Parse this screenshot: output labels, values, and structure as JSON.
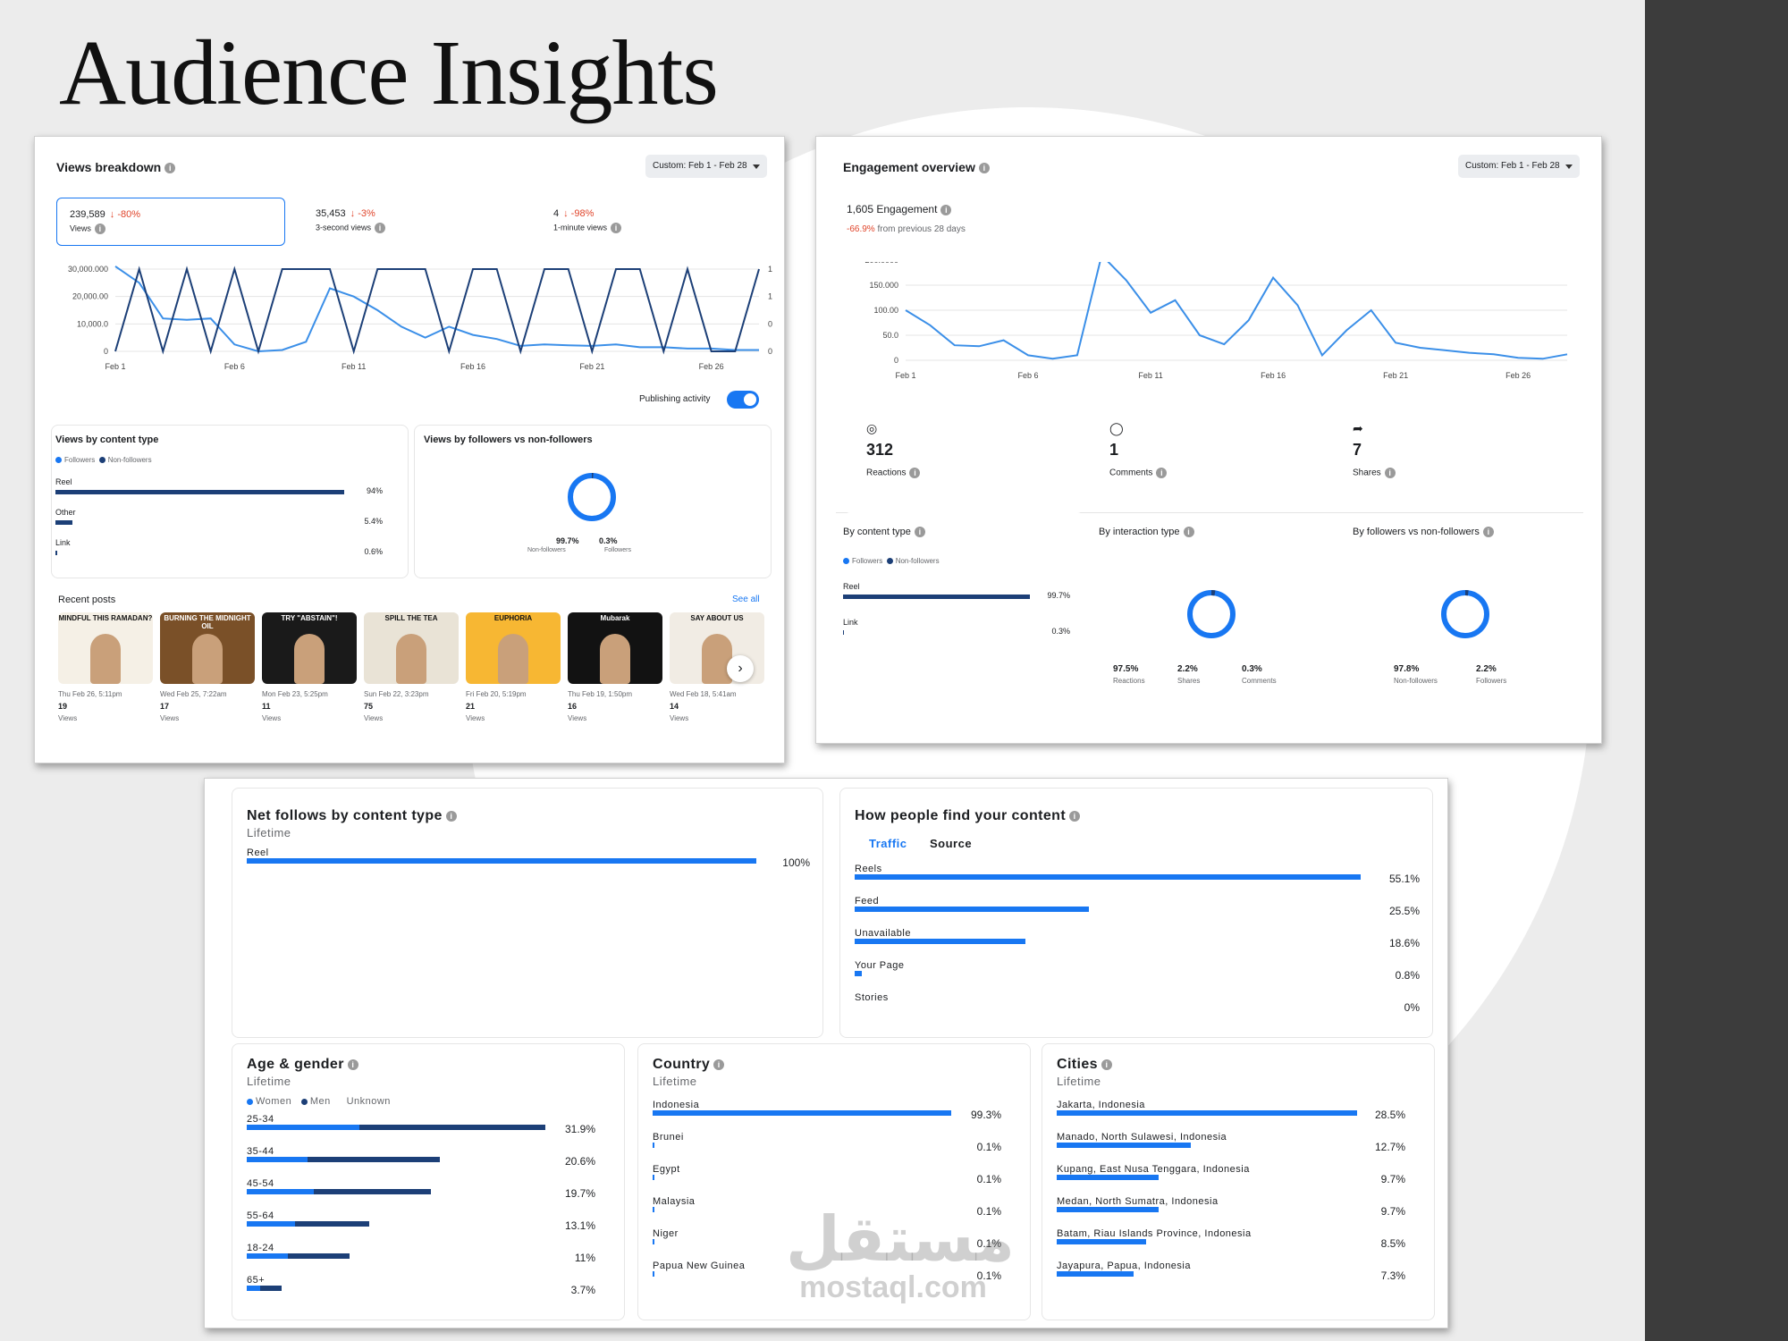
{
  "page_title": "Audience Insights",
  "views": {
    "title": "Views breakdown",
    "date_range": "Custom: Feb 1 - Feb 28",
    "metrics": [
      {
        "value": "239,589",
        "change": "↓ -80%",
        "label": "Views"
      },
      {
        "value": "35,453",
        "change": "↓ -3%",
        "label": "3-second views"
      },
      {
        "value": "4",
        "change": "↓ -98%",
        "label": "1-minute views"
      }
    ],
    "y_left": [
      "30,000.000",
      "20,000.00",
      "10,000.0",
      "0"
    ],
    "y_right": [
      "1",
      "1",
      "0",
      "0"
    ],
    "x_ticks": [
      "Feb 1",
      "Feb 6",
      "Feb 11",
      "Feb 16",
      "Feb 21",
      "Feb 26"
    ],
    "publishing_label": "Publishing activity",
    "content_type_title": "Views by content type",
    "legend_followers": "Followers",
    "legend_nonfollowers": "Non-followers",
    "content_types": [
      {
        "label": "Reel",
        "pct": "94%",
        "value": 94
      },
      {
        "label": "Other",
        "pct": "5.4%",
        "value": 5.4
      },
      {
        "label": "Link",
        "pct": "0.6%",
        "value": 0.6
      }
    ],
    "followers_title": "Views by followers vs non-followers",
    "donut": {
      "a_val": "99.7%",
      "a_lbl": "Non-followers",
      "b_val": "0.3%",
      "b_lbl": "Followers"
    },
    "recent_title": "Recent posts",
    "see_all": "See all",
    "posts": [
      {
        "caption": "MINDFUL THIS RAMADAN?",
        "date": "Thu Feb 26, 5:11pm",
        "views": "19",
        "unit": "Views",
        "bg": "#f5f0e6"
      },
      {
        "caption": "BURNING THE MIDNIGHT OIL",
        "date": "Wed Feb 25, 7:22am",
        "views": "17",
        "unit": "Views",
        "bg": "#7a5028"
      },
      {
        "caption": "TRY \"ABSTAIN\"!",
        "date": "Mon Feb 23, 5:25pm",
        "views": "11",
        "unit": "Views",
        "bg": "#1a1a1a"
      },
      {
        "caption": "SPILL THE TEA",
        "date": "Sun Feb 22, 3:23pm",
        "views": "75",
        "unit": "Views",
        "bg": "#e9e3d6"
      },
      {
        "caption": "EUPHORIA",
        "date": "Fri Feb 20, 5:19pm",
        "views": "21",
        "unit": "Views",
        "bg": "#f7b733"
      },
      {
        "caption": "Mubarak",
        "date": "Thu Feb 19, 1:50pm",
        "views": "16",
        "unit": "Views",
        "bg": "#121212"
      },
      {
        "caption": "SAY ABOUT US",
        "date": "Wed Feb 18, 5:41am",
        "views": "14",
        "unit": "Views",
        "bg": "#f1ece4"
      }
    ]
  },
  "engagement": {
    "title": "Engagement overview",
    "date_range": "Custom: Feb 1 - Feb 28",
    "total": "1,605 Engagement",
    "change": "-66.9%",
    "change_suffix": "from previous 28 days",
    "y_ticks": [
      "200.0000",
      "150.000",
      "100.00",
      "50.0",
      "0"
    ],
    "x_ticks": [
      "Feb 1",
      "Feb 6",
      "Feb 11",
      "Feb 16",
      "Feb 21",
      "Feb 26"
    ],
    "stats": [
      {
        "value": "312",
        "label": "Reactions"
      },
      {
        "value": "1",
        "label": "Comments"
      },
      {
        "value": "7",
        "label": "Shares"
      }
    ],
    "content_title": "By content type",
    "legend_followers": "Followers",
    "legend_nonfollowers": "Non-followers",
    "content_types": [
      {
        "label": "Reel",
        "pct": "99.7%",
        "value": 99.7
      },
      {
        "label": "Link",
        "pct": "0.3%",
        "value": 0.3
      }
    ],
    "interaction_title": "By interaction type",
    "interaction": [
      {
        "val": "97.5%",
        "lbl": "Reactions"
      },
      {
        "val": "2.2%",
        "lbl": "Shares"
      },
      {
        "val": "0.3%",
        "lbl": "Comments"
      }
    ],
    "fvn_title": "By followers vs non-followers",
    "fvn": [
      {
        "val": "97.8%",
        "lbl": "Non-followers"
      },
      {
        "val": "2.2%",
        "lbl": "Followers"
      }
    ]
  },
  "netfollows": {
    "title": "Net follows by content type",
    "sub": "Lifetime",
    "items": [
      {
        "label": "Reel",
        "pct": "100%",
        "value": 100
      }
    ]
  },
  "discovery": {
    "title": "How people find your content",
    "tab_traffic": "Traffic",
    "tab_source": "Source",
    "items": [
      {
        "label": "Reels",
        "pct": "55.1%",
        "value": 55.1
      },
      {
        "label": "Feed",
        "pct": "25.5%",
        "value": 25.5
      },
      {
        "label": "Unavailable",
        "pct": "18.6%",
        "value": 18.6
      },
      {
        "label": "Your Page",
        "pct": "0.8%",
        "value": 0.8
      },
      {
        "label": "Stories",
        "pct": "0%",
        "value": 0
      }
    ]
  },
  "age": {
    "title": "Age & gender",
    "sub": "Lifetime",
    "legend": [
      "Women",
      "Men",
      "Unknown"
    ],
    "items": [
      {
        "label": "25-34",
        "pct": "31.9%",
        "women": 12,
        "men": 19.9
      },
      {
        "label": "35-44",
        "pct": "20.6%",
        "women": 6.5,
        "men": 14.1
      },
      {
        "label": "45-54",
        "pct": "19.7%",
        "women": 7.2,
        "men": 12.5
      },
      {
        "label": "55-64",
        "pct": "13.1%",
        "women": 5.2,
        "men": 7.9
      },
      {
        "label": "18-24",
        "pct": "11%",
        "women": 4.4,
        "men": 6.6
      },
      {
        "label": "65+",
        "pct": "3.7%",
        "women": 1.4,
        "men": 2.3
      }
    ]
  },
  "country": {
    "title": "Country",
    "sub": "Lifetime",
    "items": [
      {
        "label": "Indonesia",
        "pct": "99.3%",
        "value": 99.3
      },
      {
        "label": "Brunei",
        "pct": "0.1%",
        "value": 0.1
      },
      {
        "label": "Egypt",
        "pct": "0.1%",
        "value": 0.1
      },
      {
        "label": "Malaysia",
        "pct": "0.1%",
        "value": 0.1
      },
      {
        "label": "Niger",
        "pct": "0.1%",
        "value": 0.1
      },
      {
        "label": "Papua New Guinea",
        "pct": "0.1%",
        "value": 0.1
      }
    ]
  },
  "cities": {
    "title": "Cities",
    "sub": "Lifetime",
    "items": [
      {
        "label": "Jakarta, Indonesia",
        "pct": "28.5%",
        "value": 28.5
      },
      {
        "label": "Manado, North Sulawesi, Indonesia",
        "pct": "12.7%",
        "value": 12.7
      },
      {
        "label": "Kupang, East Nusa Tenggara, Indonesia",
        "pct": "9.7%",
        "value": 9.7
      },
      {
        "label": "Medan, North Sumatra, Indonesia",
        "pct": "9.7%",
        "value": 9.7
      },
      {
        "label": "Batam, Riau Islands Province, Indonesia",
        "pct": "8.5%",
        "value": 8.5
      },
      {
        "label": "Jayapura, Papua, Indonesia",
        "pct": "7.3%",
        "value": 7.3
      }
    ]
  },
  "watermark": {
    "arabic": "مستقل",
    "latin": "mostaql.com"
  },
  "chart_data": [
    {
      "type": "line",
      "title": "Views breakdown",
      "x": [
        "Feb 1",
        "Feb 2",
        "Feb 3",
        "Feb 4",
        "Feb 5",
        "Feb 6",
        "Feb 7",
        "Feb 8",
        "Feb 9",
        "Feb 10",
        "Feb 11",
        "Feb 12",
        "Feb 13",
        "Feb 14",
        "Feb 15",
        "Feb 16",
        "Feb 17",
        "Feb 18",
        "Feb 19",
        "Feb 20",
        "Feb 21",
        "Feb 22",
        "Feb 23",
        "Feb 24",
        "Feb 25",
        "Feb 26",
        "Feb 27",
        "Feb 28"
      ],
      "series": [
        {
          "name": "Views",
          "axis": "left",
          "values": [
            31000,
            25000,
            12000,
            11500,
            12000,
            2500,
            0,
            500,
            3500,
            23000,
            20000,
            15000,
            9000,
            5000,
            9000,
            6000,
            4500,
            2000,
            2500,
            2200,
            2000,
            2500,
            1500,
            1500,
            1000,
            1000,
            500,
            500
          ]
        },
        {
          "name": "Publishing activity",
          "axis": "right",
          "values": [
            0,
            1,
            0,
            1,
            0,
            1,
            0,
            1,
            1,
            1,
            0,
            1,
            1,
            1,
            0,
            1,
            1,
            0,
            1,
            1,
            0,
            1,
            1,
            0,
            1,
            0,
            0,
            1
          ]
        }
      ]
    },
    {
      "type": "line",
      "title": "Engagement overview",
      "x": [
        "Feb 1",
        "Feb 2",
        "Feb 3",
        "Feb 4",
        "Feb 5",
        "Feb 6",
        "Feb 7",
        "Feb 8",
        "Feb 9",
        "Feb 10",
        "Feb 11",
        "Feb 12",
        "Feb 13",
        "Feb 14",
        "Feb 15",
        "Feb 16",
        "Feb 17",
        "Feb 18",
        "Feb 19",
        "Feb 20",
        "Feb 21",
        "Feb 22",
        "Feb 23",
        "Feb 24",
        "Feb 25",
        "Feb 26",
        "Feb 27",
        "Feb 28"
      ],
      "ylim": [
        0,
        200
      ],
      "series": [
        {
          "name": "Engagement",
          "values": [
            100,
            70,
            30,
            28,
            40,
            10,
            3,
            10,
            210,
            160,
            95,
            120,
            50,
            32,
            80,
            165,
            110,
            10,
            60,
            100,
            35,
            25,
            20,
            15,
            12,
            5,
            3,
            12
          ]
        }
      ]
    }
  ]
}
